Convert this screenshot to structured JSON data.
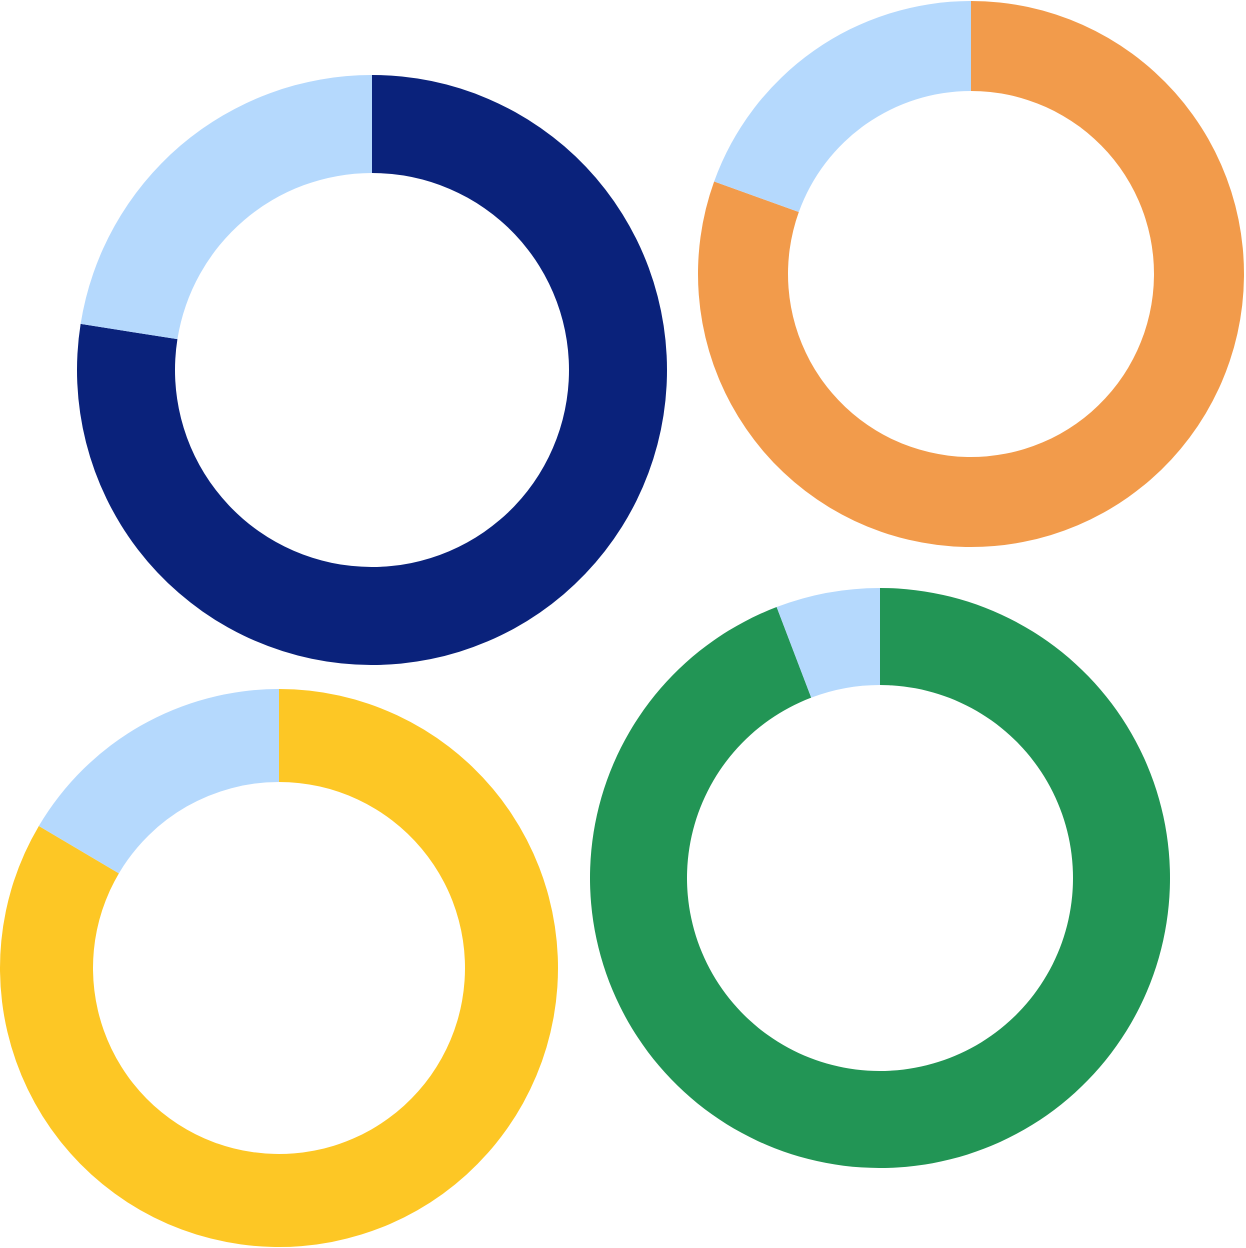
{
  "colors": {
    "remainder": "#b5d9fd"
  },
  "chart_data": [
    {
      "type": "pie",
      "variant": "donut",
      "series": [
        {
          "values": [
            77.5,
            22.5
          ],
          "colors": [
            "#0a227b",
            "#b5d9fd"
          ]
        }
      ]
    },
    {
      "type": "pie",
      "variant": "donut",
      "series": [
        {
          "values": [
            80.5,
            19.5
          ],
          "colors": [
            "#f29b4b",
            "#b5d9fd"
          ]
        }
      ]
    },
    {
      "type": "pie",
      "variant": "donut",
      "series": [
        {
          "values": [
            83.5,
            16.5
          ],
          "colors": [
            "#fdc725",
            "#b5d9fd"
          ]
        }
      ]
    },
    {
      "type": "pie",
      "variant": "donut",
      "series": [
        {
          "values": [
            94.2,
            5.8
          ],
          "colors": [
            "#229555",
            "#b5d9fd"
          ]
        }
      ]
    }
  ]
}
